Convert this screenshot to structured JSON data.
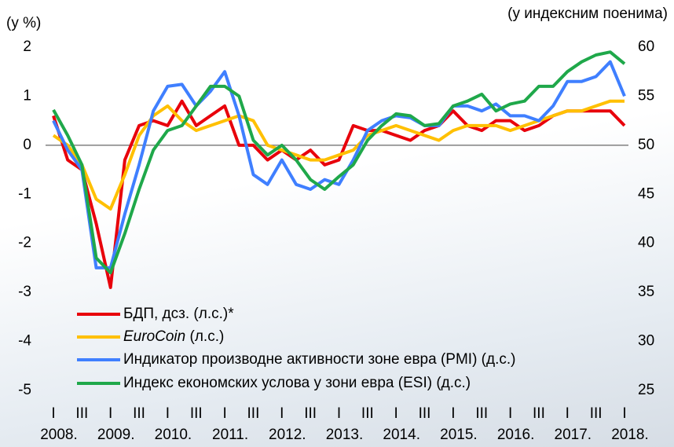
{
  "chart_data": {
    "type": "line",
    "y_label": "(у %)",
    "y2_label": "(у индексним поенима)",
    "categories": [
      "I",
      null,
      "III",
      null,
      "I",
      null,
      "III",
      null,
      "I",
      null,
      "III",
      null,
      "I",
      null,
      "III",
      null,
      "I",
      null,
      "III",
      null,
      "I",
      null,
      "III",
      null,
      "I",
      null,
      "III",
      null,
      "I",
      null,
      "III",
      null,
      "I",
      null,
      "III",
      null,
      "I",
      null,
      "III",
      null,
      "I"
    ],
    "years": [
      "2008.",
      "2009.",
      "2010.",
      "2011.",
      "2012.",
      "2013.",
      "2014.",
      "2015.",
      "2016.",
      "2017.",
      "2018."
    ],
    "ylim": [
      -5,
      2
    ],
    "yticks": [
      -5,
      -4,
      -3,
      -2,
      -1,
      0,
      1,
      2
    ],
    "y2lim": [
      25,
      60
    ],
    "y2ticks": [
      25,
      30,
      35,
      40,
      45,
      50,
      55,
      60
    ],
    "series": [
      {
        "name": "БДП, дсз. (л.с.)*",
        "color": "#e8000b",
        "values": [
          0.6,
          -0.3,
          -0.5,
          -1.6,
          -2.9,
          -0.3,
          0.4,
          0.5,
          0.4,
          0.9,
          0.4,
          0.6,
          0.8,
          0.0,
          0.0,
          -0.3,
          -0.1,
          -0.3,
          -0.1,
          -0.4,
          -0.3,
          0.4,
          0.3,
          0.3,
          0.2,
          0.1,
          0.3,
          0.4,
          0.7,
          0.4,
          0.3,
          0.5,
          0.5,
          0.3,
          0.4,
          0.6,
          0.7,
          0.7,
          0.7,
          0.7,
          0.4
        ]
      },
      {
        "name": "EuroCoin (л.с.)",
        "color": "#ffc000",
        "values": [
          0.2,
          0.0,
          -0.4,
          -1.1,
          -1.3,
          -0.6,
          0.2,
          0.6,
          0.8,
          0.5,
          0.3,
          0.4,
          0.5,
          0.6,
          0.5,
          0.0,
          -0.1,
          -0.2,
          -0.3,
          -0.3,
          -0.2,
          -0.1,
          0.2,
          0.3,
          0.4,
          0.3,
          0.2,
          0.1,
          0.3,
          0.4,
          0.4,
          0.4,
          0.3,
          0.4,
          0.5,
          0.6,
          0.7,
          0.7,
          0.8,
          0.9,
          0.9
        ]
      },
      {
        "name": "Индикатор производне активности зоне евра (PMI) (д.с.)",
        "color": "#3f7fff",
        "axis": "y2",
        "values": [
          52.5,
          49.5,
          47.5,
          37.5,
          37.5,
          43,
          48,
          53.5,
          56,
          56.2,
          54,
          55.5,
          57.5,
          53,
          47,
          46,
          48.5,
          46,
          45.5,
          46.5,
          46,
          48.5,
          51.5,
          52.5,
          53,
          52.8,
          52,
          52,
          54,
          54,
          53.5,
          54.2,
          53,
          53,
          52.5,
          54,
          56.5,
          56.5,
          57,
          58.5,
          55
        ]
      },
      {
        "name": "Индекс економских услова у зони евра (ESI) (д.с.)",
        "color": "#1fa84a",
        "axis": "y2",
        "values": [
          53.6,
          51,
          48,
          38.5,
          37,
          41,
          45.5,
          49.5,
          51.5,
          52,
          54,
          56,
          56,
          55,
          50.5,
          49,
          50,
          48.5,
          46.5,
          45.5,
          46.8,
          48,
          50.5,
          52,
          53.2,
          53,
          52,
          52.2,
          54,
          54.5,
          55.2,
          53.5,
          54.2,
          54.5,
          56,
          56,
          57.5,
          58.5,
          59.2,
          59.5,
          58.3
        ]
      }
    ]
  }
}
